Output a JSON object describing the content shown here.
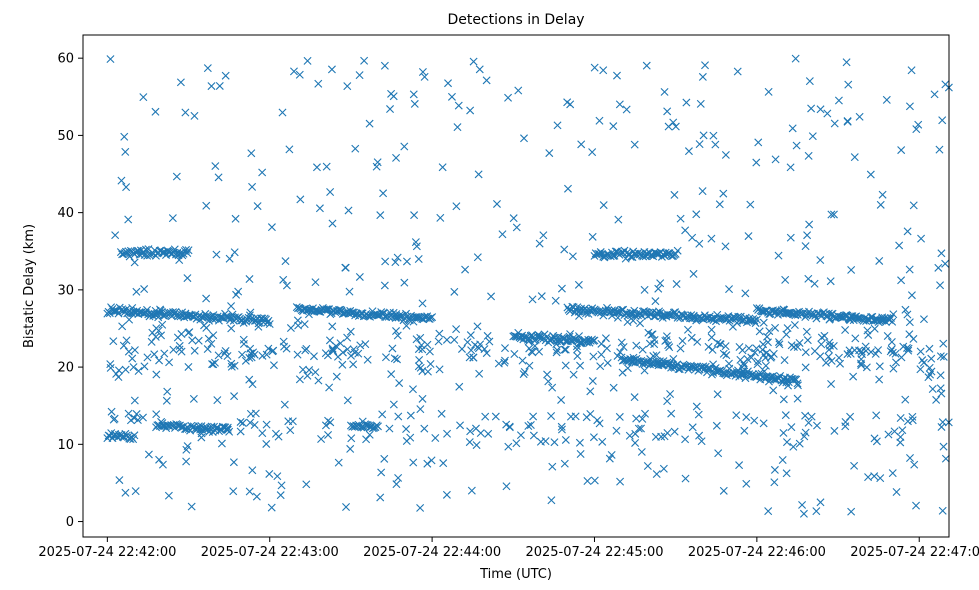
{
  "chart_data": {
    "type": "scatter",
    "title": "Detections in Delay",
    "xlabel": "Time (UTC)",
    "ylabel": "Bistatic Delay (km)",
    "marker": "x",
    "color": "#1f77b4",
    "grid": false,
    "xlim": [
      "2025-07-24 22:41:51",
      "2025-07-24 22:47:11"
    ],
    "ylim": [
      -2,
      63
    ],
    "x_ticks": [
      "2025-07-24 22:42:00",
      "2025-07-24 22:43:00",
      "2025-07-24 22:44:00",
      "2025-07-24 22:45:00",
      "2025-07-24 22:46:00",
      "2025-07-24 22:47:00"
    ],
    "y_ticks": [
      0,
      10,
      20,
      30,
      40,
      50,
      60
    ],
    "tracks": [
      {
        "x_start": "2025-07-24 22:42:00",
        "x_end": "2025-07-24 22:43:00",
        "y_start": 27.3,
        "y_end": 26.0
      },
      {
        "x_start": "2025-07-24 22:43:10",
        "x_end": "2025-07-24 22:44:00",
        "y_start": 27.6,
        "y_end": 26.2
      },
      {
        "x_start": "2025-07-24 22:44:50",
        "x_end": "2025-07-24 22:46:00",
        "y_start": 27.5,
        "y_end": 26.0
      },
      {
        "x_start": "2025-07-24 22:46:00",
        "x_end": "2025-07-24 22:46:50",
        "y_start": 27.3,
        "y_end": 26.1
      },
      {
        "x_start": "2025-07-24 22:44:30",
        "x_end": "2025-07-24 22:45:00",
        "y_start": 24.0,
        "y_end": 23.2
      },
      {
        "x_start": "2025-07-24 22:45:10",
        "x_end": "2025-07-24 22:46:15",
        "y_start": 21.0,
        "y_end": 18.2
      },
      {
        "x_start": "2025-07-24 22:42:00",
        "x_end": "2025-07-24 22:42:10",
        "y_start": 11.0,
        "y_end": 11.0
      },
      {
        "x_start": "2025-07-24 22:42:18",
        "x_end": "2025-07-24 22:42:45",
        "y_start": 12.5,
        "y_end": 11.8
      },
      {
        "x_start": "2025-07-24 22:43:30",
        "x_end": "2025-07-24 22:43:40",
        "y_start": 12.3,
        "y_end": 12.3
      },
      {
        "x_start": "2025-07-24 22:42:05",
        "x_end": "2025-07-24 22:42:30",
        "y_start": 34.8,
        "y_end": 34.8
      },
      {
        "x_start": "2025-07-24 22:45:00",
        "x_end": "2025-07-24 22:45:30",
        "y_start": 34.6,
        "y_end": 34.6
      }
    ],
    "scattered_count": 900,
    "seed": 20250724
  }
}
